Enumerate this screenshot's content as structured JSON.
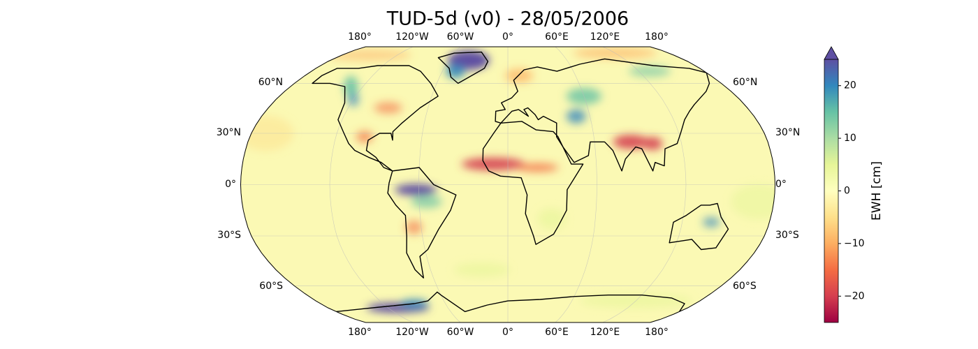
{
  "title": "TUD-5d (v0) - 28/05/2006",
  "map": {
    "projection": "Robinson",
    "lon_labels": [
      "180°",
      "120°W",
      "60°W",
      "0°",
      "60°E",
      "120°E",
      "180°"
    ],
    "lat_labels": [
      "60°N",
      "30°N",
      "0°",
      "30°S",
      "60°S"
    ]
  },
  "colorbar": {
    "label": "EWH [cm]",
    "lim": [
      -25,
      25
    ],
    "extend": "max",
    "colormap": "Spectral",
    "ticks": [
      {
        "value": -20,
        "label": "−20"
      },
      {
        "value": -10,
        "label": "−10"
      },
      0,
      10,
      20
    ]
  }
}
